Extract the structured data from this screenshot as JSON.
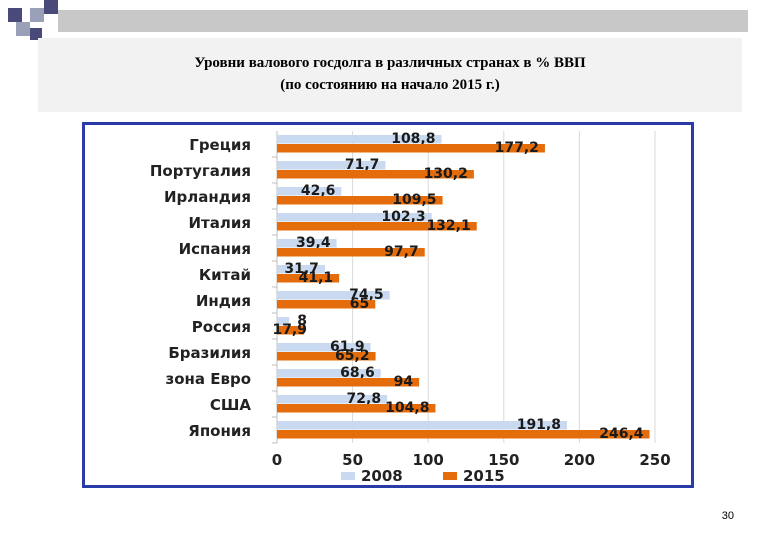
{
  "slide": {
    "title_line1": "Уровни валового госдолга в различных странах  в % ВВП",
    "title_line2": "(по состоянию на начало 2015 г.)",
    "page_number": "30"
  },
  "colors": {
    "series_2008": "#c9d9f0",
    "series_2015": "#e46c0a",
    "frame": "#2a3aa8"
  },
  "chart_data": {
    "type": "bar",
    "orientation": "horizontal",
    "categories": [
      "Греция",
      "Португалия",
      "Ирландия",
      "Италия",
      "Испания",
      "Китай",
      "Индия",
      "Россия",
      "Бразилия",
      "зона Евро",
      "США",
      "Япония"
    ],
    "series": [
      {
        "name": "2008",
        "values": [
          108.8,
          71.7,
          42.6,
          102.3,
          39.4,
          31.7,
          74.5,
          8,
          61.9,
          68.6,
          72.8,
          191.8
        ],
        "labels": [
          "108,8",
          "71,7",
          "42,6",
          "102,3",
          "39,4",
          "31,7",
          "74,5",
          "8",
          "61,9",
          "68,6",
          "72,8",
          "191,8"
        ]
      },
      {
        "name": "2015",
        "values": [
          177.2,
          130.2,
          109.5,
          132.1,
          97.7,
          41.1,
          65,
          17.9,
          65.2,
          94,
          104.8,
          246.4
        ],
        "labels": [
          "177,2",
          "130,2",
          "109,5",
          "132,1",
          "97,7",
          "41,1",
          "65",
          "17,9",
          "65,2",
          "94",
          "104,8",
          "246,4"
        ]
      }
    ],
    "xticks": [
      "0",
      "50",
      "100",
      "150",
      "200",
      "250"
    ],
    "xlim": [
      0,
      250
    ],
    "grid": true,
    "legend_position": "bottom"
  }
}
